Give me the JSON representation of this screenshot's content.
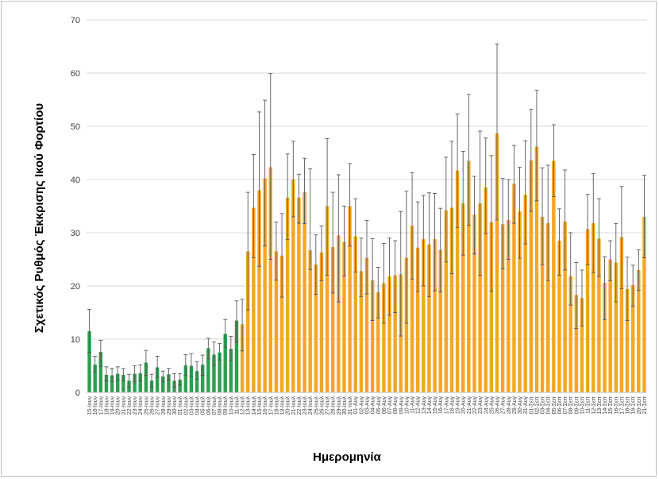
{
  "chart_data": {
    "type": "bar",
    "xlabel": "Ημερομηνία",
    "ylabel": "Σχετικός Ρυθμός Έκκρισης Ικού Φορτίου",
    "ylim": [
      0,
      70
    ],
    "yticks": [
      0,
      10,
      20,
      30,
      40,
      50,
      60,
      70
    ],
    "grid": true,
    "error_bars": true,
    "colors": {
      "june_early_july": "#2e9e4f",
      "mid_july_onward": "#f5a623",
      "error_bar": "#595959",
      "grid": "#d9d9d9"
    },
    "categories": [
      "15-Ιουν",
      "16-Ιουν",
      "17-Ιουν",
      "18-Ιουν",
      "19-Ιουν",
      "20-Ιουν",
      "21-Ιουν",
      "22-Ιουν",
      "23-Ιουν",
      "24-Ιουν",
      "25-Ιουν",
      "26-Ιουν",
      "27-Ιουν",
      "28-Ιουν",
      "29-Ιουν",
      "30-Ιουν",
      "01-Ιουλ",
      "02-Ιουλ",
      "03-Ιουλ",
      "04-Ιουλ",
      "05-Ιουλ",
      "06-Ιουλ",
      "07-Ιουλ",
      "08-Ιουλ",
      "09-Ιουλ",
      "10-Ιουλ",
      "11-Ιουλ",
      "12-Ιουλ",
      "13-Ιουλ",
      "14-Ιουλ",
      "15-Ιουλ",
      "16-Ιουλ",
      "17-Ιουλ",
      "18-Ιουλ",
      "19-Ιουλ",
      "20-Ιουλ",
      "21-Ιουλ",
      "22-Ιουλ",
      "23-Ιουλ",
      "24-Ιουλ",
      "25-Ιουλ",
      "26-Ιουλ",
      "27-Ιουλ",
      "28-Ιουλ",
      "29-Ιουλ",
      "30-Ιουλ",
      "31-Ιουλ",
      "01-Αυγ",
      "02-Αυγ",
      "03-Αυγ",
      "04-Αυγ",
      "05-Αυγ",
      "06-Αυγ",
      "07-Αυγ",
      "08-Αυγ",
      "09-Αυγ",
      "10-Αυγ",
      "11-Αυγ",
      "12-Αυγ",
      "13-Αυγ",
      "14-Αυγ",
      "15-Αυγ",
      "16-Αυγ",
      "17-Αυγ",
      "18-Αυγ",
      "19-Αυγ",
      "20-Αυγ",
      "21-Αυγ",
      "22-Αυγ",
      "23-Αυγ",
      "24-Αυγ",
      "25-Αυγ",
      "26-Αυγ",
      "27-Αυγ",
      "28-Αυγ",
      "29-Αυγ",
      "30-Αυγ",
      "31-Αυγ",
      "01-Σεπ",
      "02-Σεπ",
      "03-Σεπ",
      "04-Σεπ",
      "05-Σεπ",
      "06-Σεπ",
      "07-Σεπ",
      "08-Σεπ",
      "09-Σεπ",
      "10-Σεπ",
      "11-Σεπ",
      "12-Σεπ",
      "13-Σεπ",
      "14-Σεπ",
      "15-Σεπ",
      "16-Σεπ",
      "17-Σεπ",
      "18-Σεπ",
      "19-Σεπ",
      "20-Σεπ",
      "21-Σεπ"
    ],
    "values": [
      11.5,
      5.2,
      7.6,
      3.3,
      3.2,
      3.5,
      3.3,
      2.2,
      3.5,
      3.6,
      5.6,
      2.2,
      4.7,
      3.0,
      3.4,
      2.2,
      2.4,
      5.1,
      5.0,
      4.0,
      5.2,
      8.3,
      7.1,
      7.5,
      11.0,
      8.2,
      13.5,
      12.8,
      26.5,
      34.7,
      38.0,
      40.2,
      42.3,
      26.5,
      25.7,
      36.6,
      40.0,
      36.6,
      37.7,
      26.7,
      24.0,
      26.3,
      35.0,
      27.3,
      29.5,
      28.3,
      35.0,
      29.3,
      22.8,
      25.3,
      21.1,
      18.8,
      20.5,
      21.8,
      22.0,
      22.2,
      25.3,
      31.3,
      27.2,
      28.8,
      27.8,
      28.8,
      26.8,
      34.2,
      34.7,
      41.7,
      35.5,
      43.5,
      33.4,
      35.5,
      38.5,
      32.0,
      48.7,
      31.6,
      32.4,
      39.2,
      34.0,
      37.1,
      43.6,
      46.2,
      33.0,
      31.8,
      43.5,
      28.5,
      32.1,
      21.8,
      18.3,
      17.7,
      30.7,
      31.8,
      28.9,
      20.6,
      25.0,
      24.4,
      29.2,
      19.4,
      20.2,
      23.0,
      33.0
    ],
    "error_high": [
      15.6,
      6.8,
      9.8,
      4.8,
      4.5,
      4.8,
      4.5,
      3.4,
      5.0,
      5.2,
      7.9,
      3.4,
      6.8,
      4.0,
      4.5,
      3.5,
      3.5,
      7.1,
      7.3,
      5.8,
      7.0,
      10.2,
      9.5,
      9.2,
      13.7,
      10.5,
      17.2,
      17.5,
      37.6,
      44.7,
      52.7,
      54.9,
      59.9,
      32.0,
      33.6,
      44.8,
      47.2,
      41.0,
      44.0,
      42.0,
      29.6,
      31.3,
      47.7,
      37.6,
      40.9,
      35.0,
      43.0,
      36.4,
      29.0,
      32.3,
      28.9,
      23.5,
      28.0,
      29.0,
      28.5,
      34.0,
      37.8,
      41.3,
      35.8,
      37.0,
      37.5,
      37.4,
      34.6,
      44.2,
      47.2,
      52.3,
      45.3,
      56.0,
      40.6,
      49.1,
      47.8,
      44.5,
      65.5,
      40.2,
      40.0,
      46.4,
      42.3,
      47.3,
      53.2,
      56.8,
      42.2,
      42.7,
      50.3,
      34.5,
      41.8,
      30.0,
      24.4,
      23.0,
      37.2,
      41.1,
      36.4,
      25.5,
      28.5,
      31.7,
      38.7,
      25.4,
      23.9,
      26.8,
      40.8
    ],
    "error_low": [
      7.5,
      3.8,
      4.9,
      2.2,
      2.0,
      2.3,
      2.2,
      1.0,
      2.0,
      2.2,
      3.2,
      1.0,
      2.8,
      2.0,
      2.3,
      1.0,
      1.4,
      3.2,
      3.0,
      2.5,
      3.2,
      6.3,
      5.2,
      6.1,
      8.5,
      6.0,
      9.5,
      7.8,
      15.5,
      25.3,
      23.7,
      27.5,
      25.0,
      21.1,
      17.9,
      28.7,
      33.0,
      31.8,
      31.7,
      23.1,
      18.4,
      21.0,
      22.0,
      18.7,
      17.0,
      21.9,
      27.5,
      22.6,
      18.0,
      18.5,
      13.5,
      14.0,
      13.0,
      14.5,
      15.0,
      10.6,
      13.0,
      21.3,
      18.9,
      20.0,
      18.0,
      19.1,
      18.9,
      24.5,
      22.3,
      31.0,
      25.8,
      31.4,
      26.0,
      22.0,
      29.8,
      19.0,
      32.4,
      23.2,
      25.0,
      31.8,
      25.2,
      27.9,
      34.0,
      36.0,
      24.0,
      21.0,
      36.8,
      22.0,
      23.0,
      16.4,
      12.0,
      12.5,
      24.0,
      22.5,
      21.8,
      13.7,
      21.0,
      17.0,
      19.5,
      13.5,
      16.2,
      19.2,
      25.3
    ],
    "series_color_split_index": 27
  }
}
